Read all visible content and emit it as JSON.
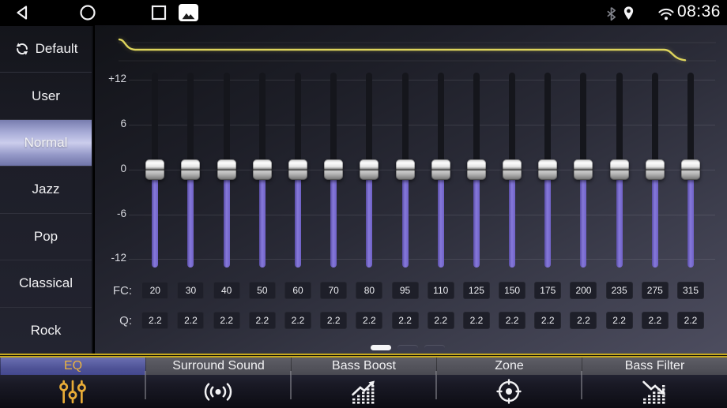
{
  "status_bar": {
    "time": "08:36",
    "nav_icons": [
      "back-icon",
      "home-icon",
      "recents-icon",
      "gallery-icon"
    ],
    "status_icons": [
      "bluetooth-icon",
      "location-icon",
      "wifi-icon"
    ]
  },
  "sidebar": {
    "items": [
      {
        "label": "Default",
        "icon": "refresh-icon",
        "active": false
      },
      {
        "label": "User",
        "active": false
      },
      {
        "label": "Normal",
        "active": true
      },
      {
        "label": "Jazz",
        "active": false
      },
      {
        "label": "Pop",
        "active": false
      },
      {
        "label": "Classical",
        "active": false
      },
      {
        "label": "Rock",
        "active": false
      }
    ]
  },
  "eq": {
    "db_scale_labels": [
      "+12",
      "6",
      "0",
      "-6",
      "-12"
    ],
    "fc_label": "FC:",
    "q_label": "Q:",
    "bands": [
      {
        "fc": "20",
        "q": "2.2",
        "gain_db": 0
      },
      {
        "fc": "30",
        "q": "2.2",
        "gain_db": 0
      },
      {
        "fc": "40",
        "q": "2.2",
        "gain_db": 0
      },
      {
        "fc": "50",
        "q": "2.2",
        "gain_db": 0
      },
      {
        "fc": "60",
        "q": "2.2",
        "gain_db": 0
      },
      {
        "fc": "70",
        "q": "2.2",
        "gain_db": 0
      },
      {
        "fc": "80",
        "q": "2.2",
        "gain_db": 0
      },
      {
        "fc": "95",
        "q": "2.2",
        "gain_db": 0
      },
      {
        "fc": "110",
        "q": "2.2",
        "gain_db": 0
      },
      {
        "fc": "125",
        "q": "2.2",
        "gain_db": 0
      },
      {
        "fc": "150",
        "q": "2.2",
        "gain_db": 0
      },
      {
        "fc": "175",
        "q": "2.2",
        "gain_db": 0
      },
      {
        "fc": "200",
        "q": "2.2",
        "gain_db": 0
      },
      {
        "fc": "235",
        "q": "2.2",
        "gain_db": 0
      },
      {
        "fc": "275",
        "q": "2.2",
        "gain_db": 0
      },
      {
        "fc": "315",
        "q": "2.2",
        "gain_db": 0
      }
    ],
    "page_dots": {
      "count": 3,
      "active_index": 0
    }
  },
  "tabs": [
    {
      "label": "EQ",
      "icon": "eq-sliders-icon",
      "active": true
    },
    {
      "label": "Surround Sound",
      "icon": "surround-icon",
      "active": false
    },
    {
      "label": "Bass Boost",
      "icon": "bass-boost-icon",
      "active": false
    },
    {
      "label": "Zone",
      "icon": "zone-icon",
      "active": false
    },
    {
      "label": "Bass Filter",
      "icon": "bass-filter-icon",
      "active": false
    }
  ],
  "colors": {
    "slider_track_purple": "#8679da",
    "curve_yellow": "#ddd45c",
    "tab_accent_gold": "#e9b23c",
    "active_tab_bg": "#575c9e",
    "active_preset_bg": "#cbcdec"
  }
}
